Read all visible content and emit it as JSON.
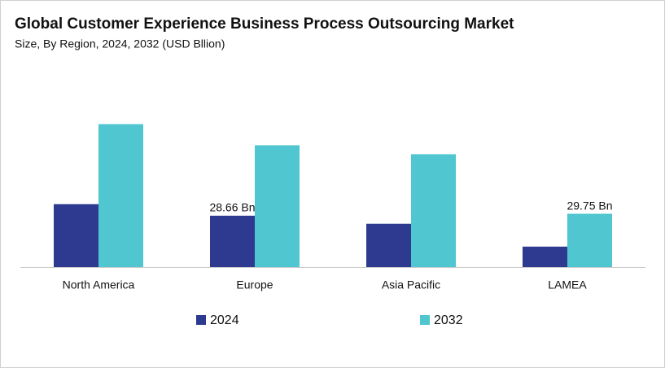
{
  "chart_data": {
    "type": "bar",
    "title": "Global Customer Experience Business Process Outsourcing Market",
    "subtitle": "Size, By Region, 2024, 2032 (USD Bllion)",
    "categories": [
      "North America",
      "Europe",
      "Asia Pacific",
      "LAMEA"
    ],
    "series": [
      {
        "name": "2024",
        "color": "#2e3a8f",
        "values": [
          35.1,
          28.66,
          24.2,
          11.4
        ],
        "value_labels": [
          null,
          "28.66 Bn",
          null,
          null
        ]
      },
      {
        "name": "2032",
        "color": "#4fc6d0",
        "values": [
          79.8,
          68.0,
          63.0,
          29.75
        ],
        "value_labels": [
          null,
          null,
          null,
          "29.75 Bn"
        ]
      }
    ],
    "ylim": [
      0,
      90
    ]
  }
}
